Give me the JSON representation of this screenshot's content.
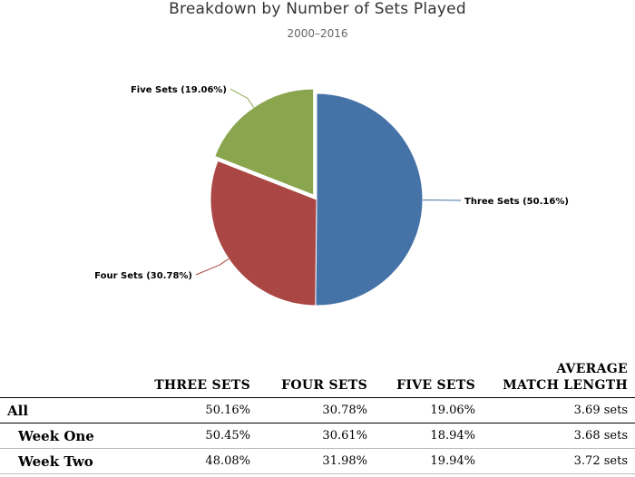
{
  "chart_data": {
    "type": "pie",
    "title": "Breakdown by Number of Sets Played",
    "subtitle": "2000–2016",
    "slices": [
      {
        "name": "Three Sets",
        "value": 50.16,
        "label": "Three Sets (50.16%)",
        "color": "#4572a7"
      },
      {
        "name": "Four Sets",
        "value": 30.78,
        "label": "Four Sets (30.78%)",
        "color": "#aa4643"
      },
      {
        "name": "Five Sets",
        "value": 19.06,
        "label": "Five Sets (19.06%)",
        "color": "#89a54e"
      }
    ]
  },
  "table": {
    "headers": [
      "THREE SETS",
      "FOUR SETS",
      "FIVE SETS",
      "AVERAGE",
      "MATCH LENGTH"
    ],
    "rows": [
      {
        "label": "All",
        "three": "50.16%",
        "four": "30.78%",
        "five": "19.06%",
        "avg": "3.69 sets"
      },
      {
        "label": "Week One",
        "three": "50.45%",
        "four": "30.61%",
        "five": "18.94%",
        "avg": "3.68 sets"
      },
      {
        "label": "Week Two",
        "three": "48.08%",
        "four": "31.98%",
        "five": "19.94%",
        "avg": "3.72 sets"
      }
    ]
  }
}
